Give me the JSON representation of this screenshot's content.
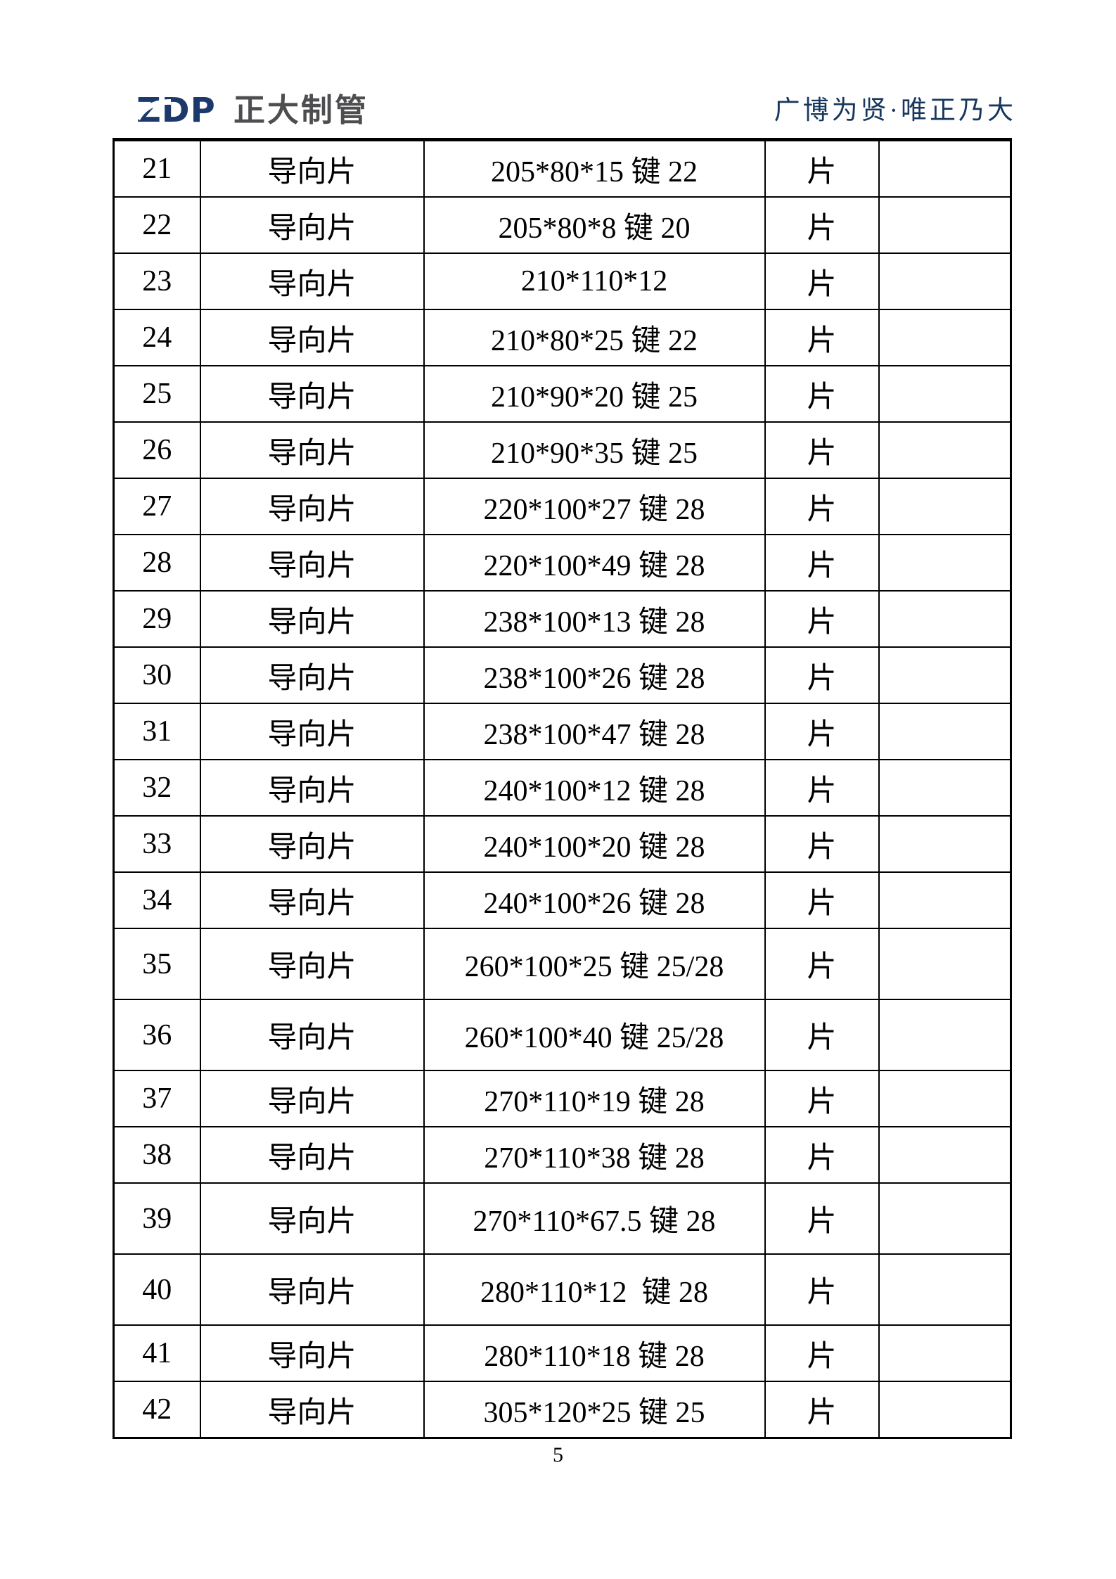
{
  "page": {
    "number": "5"
  },
  "header": {
    "logo": {
      "abbr": "ZDP",
      "company": "正大制管"
    },
    "slogan": "广博为贤·唯正乃大"
  },
  "colors": {
    "navy": "#1b3a6b",
    "logo_gray": "#4e4e50",
    "slogan_navy": "#17375e"
  },
  "table": {
    "rows": [
      {
        "no": "21",
        "name": "导向片",
        "spec": "205*80*15 键 22",
        "unit": "片",
        "note": "",
        "tall": false
      },
      {
        "no": "22",
        "name": "导向片",
        "spec": "205*80*8 键 20",
        "unit": "片",
        "note": "",
        "tall": false
      },
      {
        "no": "23",
        "name": "导向片",
        "spec": "210*110*12",
        "unit": "片",
        "note": "",
        "tall": false
      },
      {
        "no": "24",
        "name": "导向片",
        "spec": "210*80*25 键 22",
        "unit": "片",
        "note": "",
        "tall": false
      },
      {
        "no": "25",
        "name": "导向片",
        "spec": "210*90*20 键 25",
        "unit": "片",
        "note": "",
        "tall": false
      },
      {
        "no": "26",
        "name": "导向片",
        "spec": "210*90*35 键 25",
        "unit": "片",
        "note": "",
        "tall": false
      },
      {
        "no": "27",
        "name": "导向片",
        "spec": "220*100*27 键 28",
        "unit": "片",
        "note": "",
        "tall": false
      },
      {
        "no": "28",
        "name": "导向片",
        "spec": "220*100*49 键 28",
        "unit": "片",
        "note": "",
        "tall": false
      },
      {
        "no": "29",
        "name": "导向片",
        "spec": "238*100*13 键 28",
        "unit": "片",
        "note": "",
        "tall": false
      },
      {
        "no": "30",
        "name": "导向片",
        "spec": "238*100*26 键 28",
        "unit": "片",
        "note": "",
        "tall": false
      },
      {
        "no": "31",
        "name": "导向片",
        "spec": "238*100*47 键 28",
        "unit": "片",
        "note": "",
        "tall": false
      },
      {
        "no": "32",
        "name": "导向片",
        "spec": "240*100*12 键 28",
        "unit": "片",
        "note": "",
        "tall": false
      },
      {
        "no": "33",
        "name": "导向片",
        "spec": "240*100*20 键 28",
        "unit": "片",
        "note": "",
        "tall": false
      },
      {
        "no": "34",
        "name": "导向片",
        "spec": "240*100*26 键 28",
        "unit": "片",
        "note": "",
        "tall": false
      },
      {
        "no": "35",
        "name": "导向片",
        "spec": "260*100*25 键 25/28",
        "unit": "片",
        "note": "",
        "tall": true
      },
      {
        "no": "36",
        "name": "导向片",
        "spec": "260*100*40 键 25/28",
        "unit": "片",
        "note": "",
        "tall": true
      },
      {
        "no": "37",
        "name": "导向片",
        "spec": "270*110*19 键 28",
        "unit": "片",
        "note": "",
        "tall": false
      },
      {
        "no": "38",
        "name": "导向片",
        "spec": "270*110*38 键 28",
        "unit": "片",
        "note": "",
        "tall": false
      },
      {
        "no": "39",
        "name": "导向片",
        "spec": "270*110*67.5 键 28",
        "unit": "片",
        "note": "",
        "tall": true
      },
      {
        "no": "40",
        "name": "导向片",
        "spec": "280*110*12  键 28",
        "unit": "片",
        "note": "",
        "tall": true
      },
      {
        "no": "41",
        "name": "导向片",
        "spec": "280*110*18 键 28",
        "unit": "片",
        "note": "",
        "tall": false
      },
      {
        "no": "42",
        "name": "导向片",
        "spec": "305*120*25 键 25",
        "unit": "片",
        "note": "",
        "tall": false
      }
    ]
  }
}
